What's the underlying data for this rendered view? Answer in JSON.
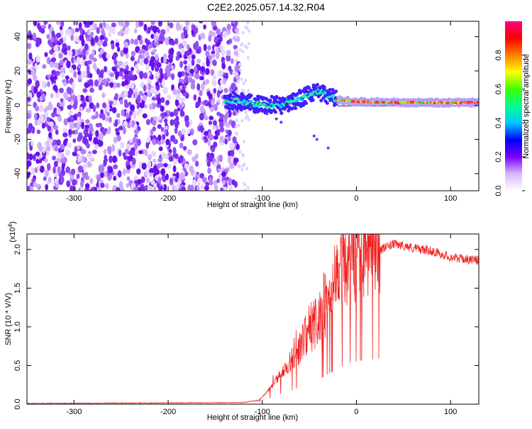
{
  "title": "C2E2.2025.057.14.32.R04",
  "colors": {
    "scatter_purple": "#7a2cf0",
    "snr_line": "#f02020",
    "axis": "#000000"
  },
  "chart_data": [
    {
      "type": "heatmap",
      "name": "spectrogram",
      "xlabel": "Height of straight line (km)",
      "ylabel": "Frequency (Hz)",
      "xlim": [
        -350,
        130
      ],
      "ylim": [
        -50,
        49
      ],
      "xticks": [
        -300,
        -200,
        -100,
        0,
        100
      ],
      "yticks": [
        -40,
        -20,
        0,
        20,
        40
      ],
      "grid": false,
      "colorbar": {
        "label": "Normalized spectral amplitude",
        "range": [
          0,
          1
        ],
        "ticks": [
          "0.0",
          "0.2",
          "0.4",
          "0.6",
          "0.8"
        ],
        "tick_values": [
          0.0,
          0.2,
          0.4,
          0.6,
          0.8
        ],
        "colormap": [
          "#ffffff",
          "#d9b8ff",
          "#7a00ff",
          "#0000ff",
          "#00c8ff",
          "#00ff90",
          "#40ff00",
          "#ffff00",
          "#ff8000",
          "#ff0000",
          "#ff0080"
        ]
      },
      "regions": [
        {
          "description": "noise",
          "x_range": [
            -350,
            -125
          ],
          "y_range": [
            -50,
            49
          ]
        },
        {
          "description": "signal trace",
          "center_freq": [
            [
              -140,
              3
            ],
            [
              -120,
              2
            ],
            [
              -100,
              0
            ],
            [
              -80,
              0
            ],
            [
              -60,
              4
            ],
            [
              -40,
              8
            ],
            [
              -20,
              3
            ],
            [
              0,
              2
            ],
            [
              50,
              1.5
            ],
            [
              130,
              1.5
            ]
          ]
        }
      ]
    },
    {
      "type": "line",
      "name": "snr",
      "xlabel": "Height of straight line (km)",
      "ylabel": "SNR (10 * V/V)",
      "y_multiplier": "(x10",
      "y_multiplier_exp": "4",
      "xlim": [
        -350,
        130
      ],
      "ylim": [
        0,
        2.2
      ],
      "xticks": [
        -300,
        -200,
        -100,
        0,
        100
      ],
      "yticks": [
        0.0,
        0.5,
        1.0,
        1.5,
        2.0
      ],
      "ytick_labels": [
        "0.0",
        "0.5",
        "1.0",
        "1.5",
        "2.0"
      ],
      "envelope": [
        [
          -350,
          0.01
        ],
        [
          -120,
          0.02
        ],
        [
          -105,
          0.05
        ],
        [
          -95,
          0.2
        ],
        [
          -80,
          0.45
        ],
        [
          -65,
          0.65
        ],
        [
          -50,
          0.9
        ],
        [
          -40,
          1.05
        ],
        [
          -30,
          1.3
        ],
        [
          -20,
          1.5
        ],
        [
          -10,
          1.75
        ],
        [
          0,
          1.85
        ],
        [
          10,
          1.9
        ],
        [
          20,
          1.95
        ],
        [
          30,
          2.02
        ],
        [
          40,
          2.07
        ],
        [
          50,
          2.05
        ],
        [
          60,
          2.02
        ],
        [
          80,
          1.98
        ],
        [
          100,
          1.9
        ],
        [
          120,
          1.87
        ],
        [
          130,
          1.86
        ]
      ]
    }
  ]
}
